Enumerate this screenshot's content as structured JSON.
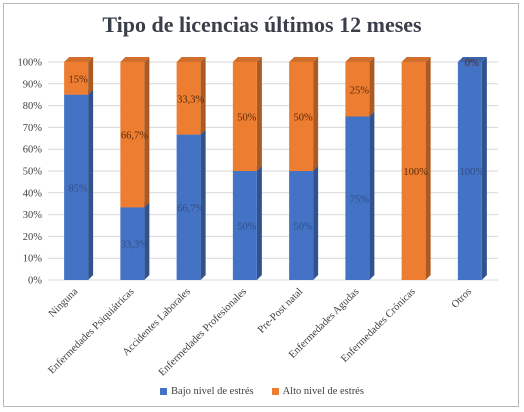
{
  "chart_data": {
    "type": "bar",
    "stacked": true,
    "percent": true,
    "title": "Tipo de licencias últimos 12 meses",
    "categories": [
      "Ninguna",
      "Enfermedades Psiquiátricas",
      "Accidentes Laborales",
      "Enfermedades Profesionales",
      "Pre-Post natal",
      "Enfermedades Agudas",
      "Enfermedades Crónicas",
      "Otros"
    ],
    "series": [
      {
        "name": "Bajo nivel de estrés",
        "color": "#4472c4",
        "values": [
          85,
          33.3,
          66.7,
          50,
          50,
          75,
          0,
          100
        ],
        "labels": [
          "85%",
          "33,3%",
          "66,7%",
          "50%",
          "50%",
          "75%",
          "",
          "100%"
        ]
      },
      {
        "name": "Alto nivel de estrés",
        "color": "#ed7d31",
        "values": [
          15,
          66.7,
          33.3,
          50,
          50,
          25,
          100,
          0
        ],
        "labels": [
          "15%",
          "66,7%",
          "33,3%",
          "50%",
          "50%",
          "25%",
          "100%",
          "0%"
        ]
      }
    ],
    "y_ticks": [
      "0%",
      "10%",
      "20%",
      "30%",
      "40%",
      "50%",
      "60%",
      "70%",
      "80%",
      "90%",
      "100%"
    ],
    "ylim": [
      0,
      100
    ],
    "grid": true,
    "legend_position": "bottom"
  }
}
